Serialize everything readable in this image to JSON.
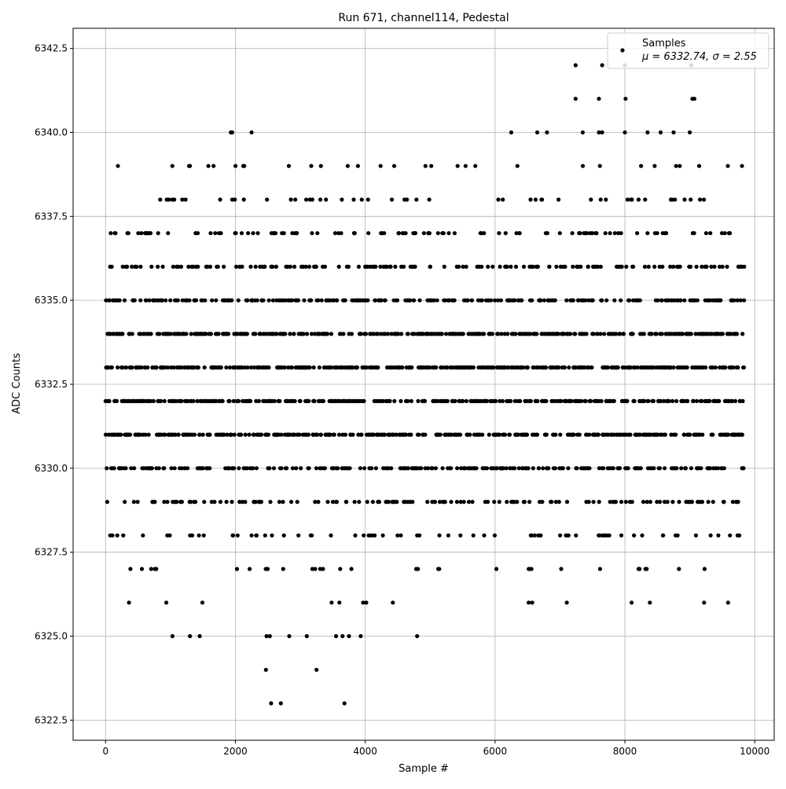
{
  "chart_data": {
    "type": "scatter",
    "title": "Run 671, channel114, Pedestal",
    "xlabel": "Sample #",
    "ylabel": "ADC Counts",
    "xlim": [
      -500,
      10300
    ],
    "ylim": [
      6321.9,
      6343.1
    ],
    "x_ticks": [
      0,
      2000,
      4000,
      6000,
      8000,
      10000
    ],
    "x_tick_labels": [
      "0",
      "2000",
      "4000",
      "6000",
      "8000",
      "10000"
    ],
    "y_ticks": [
      6322.5,
      6325.0,
      6327.5,
      6330.0,
      6332.5,
      6335.0,
      6337.5,
      6340.0,
      6342.5
    ],
    "y_tick_labels": [
      "6322.5",
      "6325.0",
      "6327.5",
      "6330.0",
      "6332.5",
      "6335.0",
      "6337.5",
      "6340.0",
      "6342.5"
    ],
    "grid": true,
    "marker_color": "#000000",
    "legend": {
      "placement": "top-right",
      "entries": [
        {
          "label": "Samples",
          "sublabel": "μ = 6332.74, σ = 2.55"
        }
      ]
    },
    "series": [
      {
        "name": "Samples",
        "count": 9840,
        "mean": 6332.74,
        "sigma": 2.55,
        "x_range": [
          0,
          9840
        ],
        "approx_points": [
          [
            1030,
            6325
          ],
          [
            1300,
            6325
          ],
          [
            1450,
            6325
          ],
          [
            2480,
            6325
          ],
          [
            2530,
            6325
          ],
          [
            2830,
            6325
          ],
          [
            3100,
            6325
          ],
          [
            3550,
            6325
          ],
          [
            3650,
            6325
          ],
          [
            3750,
            6325
          ],
          [
            3930,
            6325
          ],
          [
            4800,
            6325
          ],
          [
            2470,
            6324
          ],
          [
            3250,
            6324
          ],
          [
            2550,
            6323
          ],
          [
            2700,
            6323
          ],
          [
            3680,
            6323
          ],
          [
            1930,
            6340
          ],
          [
            1950,
            6340
          ],
          [
            2250,
            6340
          ],
          [
            6250,
            6340
          ],
          [
            6650,
            6340
          ],
          [
            6800,
            6340
          ],
          [
            7350,
            6340
          ],
          [
            7600,
            6340
          ],
          [
            7650,
            6340
          ],
          [
            8000,
            6340
          ],
          [
            8350,
            6340
          ],
          [
            8550,
            6340
          ],
          [
            8750,
            6340
          ],
          [
            9000,
            6340
          ],
          [
            7240,
            6341
          ],
          [
            7600,
            6341
          ],
          [
            8010,
            6341
          ],
          [
            9040,
            6341
          ],
          [
            9070,
            6341
          ],
          [
            7240,
            6342
          ],
          [
            7650,
            6342
          ],
          [
            8000,
            6342
          ],
          [
            9020,
            6342
          ]
        ]
      }
    ]
  }
}
